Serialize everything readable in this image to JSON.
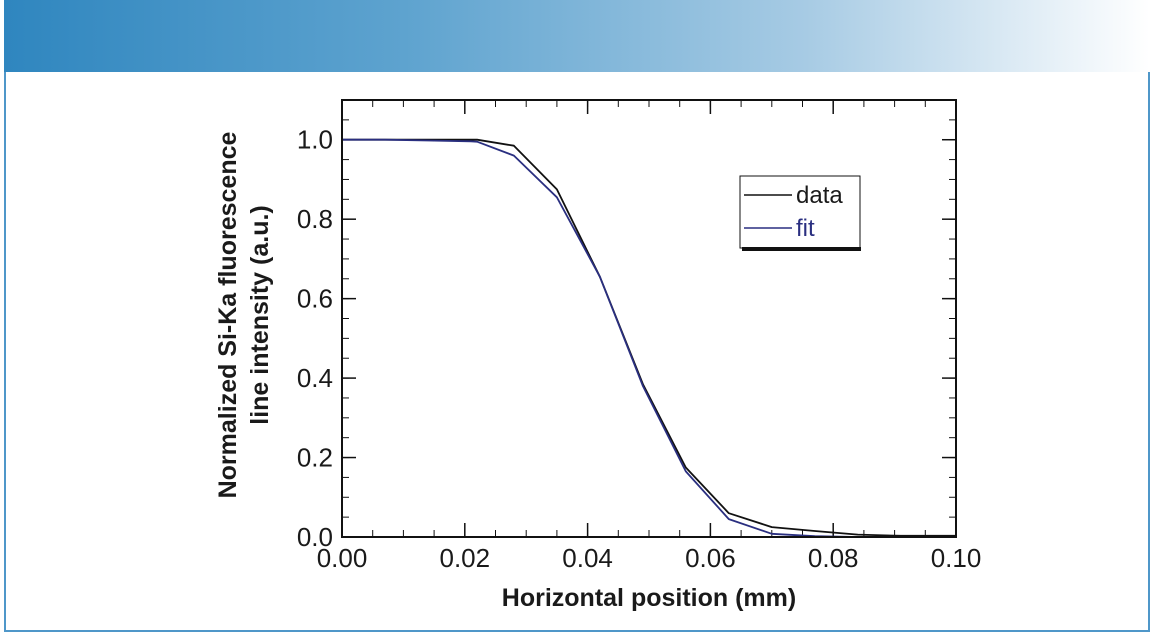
{
  "colors": {
    "banner_start": "#2f86bf",
    "frame_border": "#4f97c9",
    "data_line": "#111111",
    "fit_line": "#2a2f80"
  },
  "chart_data": {
    "type": "line",
    "xlabel": "Horizontal position (mm)",
    "ylabel_line1": "Normalized Si-Ka fluorescence",
    "ylabel_line2": "line intensity (a.u.)",
    "xlim": [
      0.0,
      0.1
    ],
    "ylim": [
      0.0,
      1.1
    ],
    "xticks": [
      "0.00",
      "0.02",
      "0.04",
      "0.06",
      "0.08",
      "0.10"
    ],
    "yticks": [
      "0.0",
      "0.2",
      "0.4",
      "0.6",
      "0.8",
      "1.0"
    ],
    "legend_position": "top-right",
    "series": [
      {
        "name": "data",
        "color": "#111111",
        "x": [
          0.0,
          0.007,
          0.014,
          0.021,
          0.022,
          0.028,
          0.035,
          0.042,
          0.049,
          0.056,
          0.063,
          0.07,
          0.077,
          0.084,
          0.091,
          0.098,
          0.1
        ],
        "y": [
          1.0,
          1.0,
          1.0,
          1.0,
          1.0,
          0.985,
          0.875,
          0.655,
          0.385,
          0.175,
          0.06,
          0.025,
          0.015,
          0.006,
          0.003,
          0.003,
          0.003
        ]
      },
      {
        "name": "fit",
        "color": "#2a2f80",
        "x": [
          0.0,
          0.007,
          0.014,
          0.021,
          0.022,
          0.028,
          0.035,
          0.042,
          0.049,
          0.056,
          0.063,
          0.07,
          0.077,
          0.084,
          0.091,
          0.098,
          0.1
        ],
        "y": [
          1.0,
          1.0,
          0.998,
          0.996,
          0.995,
          0.96,
          0.855,
          0.655,
          0.38,
          0.165,
          0.045,
          0.008,
          0.002,
          0.0,
          0.0,
          0.0,
          0.0
        ]
      }
    ]
  }
}
